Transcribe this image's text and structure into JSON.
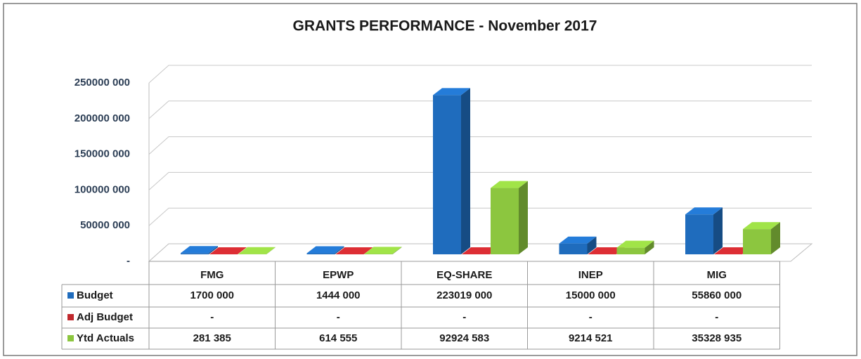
{
  "chart_data": {
    "type": "bar3d",
    "title": "GRANTS PERFORMANCE - November 2017",
    "categories": [
      "FMG",
      "EPWP",
      "EQ-SHARE",
      "INEP",
      "MIG"
    ],
    "series": [
      {
        "name": "Budget",
        "color": "#1f6cbd",
        "values": [
          1700000,
          1444000,
          223019000,
          15000000,
          55860000
        ],
        "value_labels": [
          "1700 000",
          "1444 000",
          "223019 000",
          "15000 000",
          "55860 000"
        ]
      },
      {
        "name": "Adj Budget",
        "color": "#c0282d",
        "values": [
          0,
          0,
          0,
          0,
          0
        ],
        "value_labels": [
          "-",
          "-",
          "-",
          "-",
          "-"
        ]
      },
      {
        "name": "Ytd Actuals",
        "color": "#8cc63f",
        "values": [
          281385,
          614555,
          92924583,
          9214521,
          35328935
        ],
        "value_labels": [
          "281 385",
          "614 555",
          "92924 583",
          "9214 521",
          "35328 935"
        ]
      }
    ],
    "ylim": [
      0,
      250000000
    ],
    "yticks": [
      {
        "value": 0,
        "label": "-"
      },
      {
        "value": 50000000,
        "label": "50000 000"
      },
      {
        "value": 100000000,
        "label": "100000 000"
      },
      {
        "value": 150000000,
        "label": "150000 000"
      },
      {
        "value": 200000000,
        "label": "200000 000"
      },
      {
        "value": 250000000,
        "label": "250000 000"
      }
    ],
    "grid": true,
    "data_table": true
  }
}
